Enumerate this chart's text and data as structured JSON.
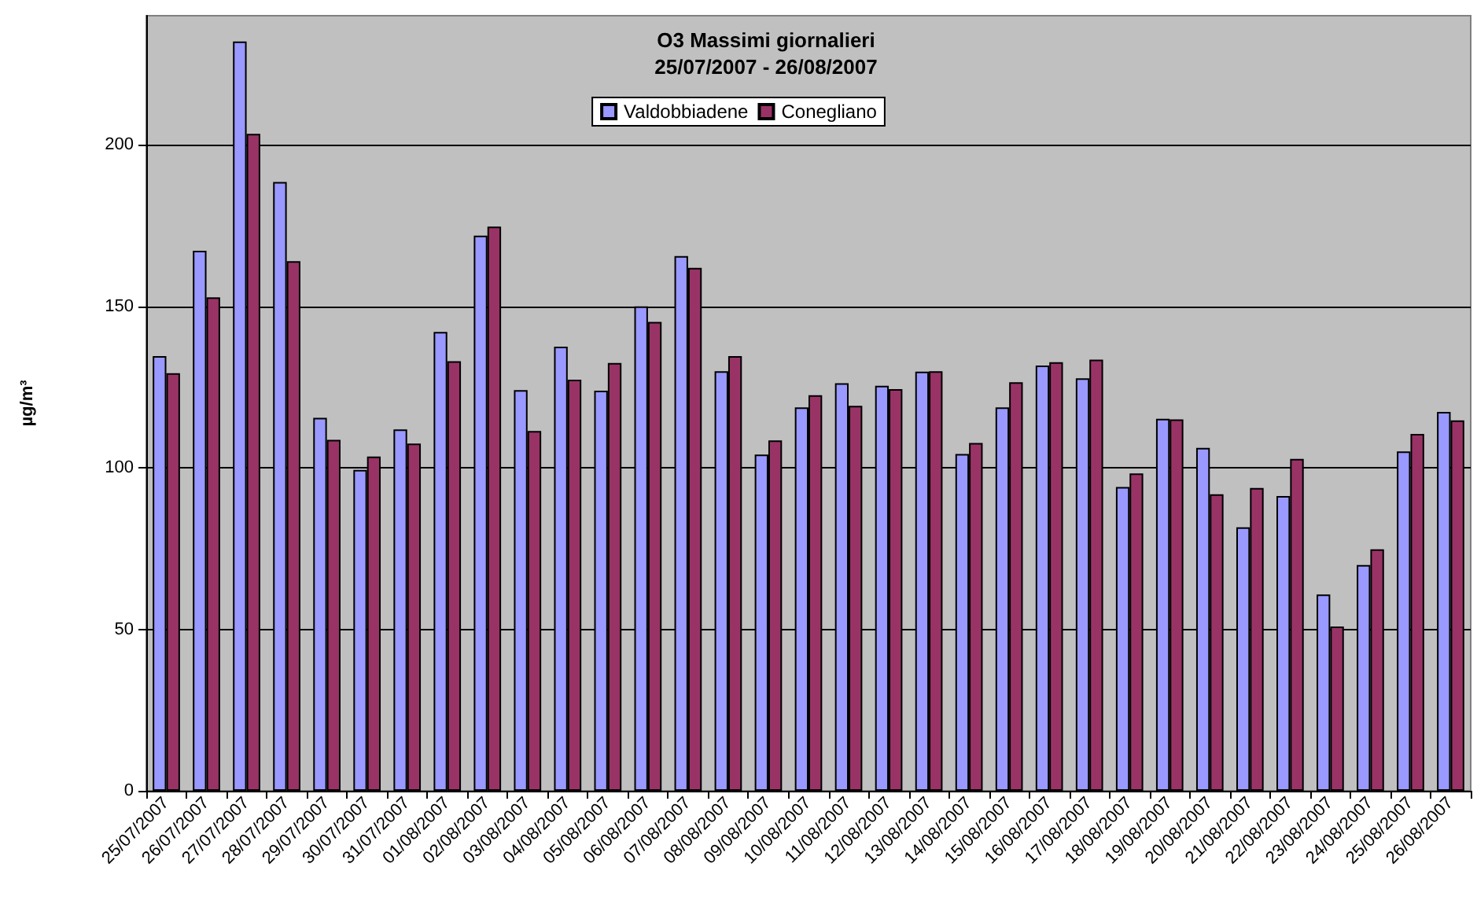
{
  "chart_data": {
    "type": "bar",
    "title": "O3 Massimi giornalieri",
    "subtitle": "25/07/2007 - 26/08/2007",
    "ylabel": "µg/m³",
    "categories": [
      "25/07/2007",
      "26/07/2007",
      "27/07/2007",
      "28/07/2007",
      "29/07/2007",
      "30/07/2007",
      "31/07/2007",
      "01/08/2007",
      "02/08/2007",
      "03/08/2007",
      "04/08/2007",
      "05/08/2007",
      "06/08/2007",
      "07/08/2007",
      "08/08/2007",
      "09/08/2007",
      "10/08/2007",
      "11/08/2007",
      "12/08/2007",
      "13/08/2007",
      "14/08/2007",
      "15/08/2007",
      "16/08/2007",
      "17/08/2007",
      "18/08/2007",
      "19/08/2007",
      "20/08/2007",
      "21/08/2007",
      "22/08/2007",
      "23/08/2007",
      "24/08/2007",
      "25/08/2007",
      "26/08/2007"
    ],
    "series": [
      {
        "name": "Valdobbiadene",
        "color": "#9999ff",
        "values": [
          134.6,
          167.2,
          232,
          188.5,
          115.5,
          99.4,
          111.9,
          142.1,
          171.9,
          124.1,
          137.5,
          123.9,
          150,
          165.6,
          129.9,
          104.1,
          118.7,
          126.2,
          125.4,
          129.8,
          104.3,
          118.7,
          131.7,
          127.7,
          94.1,
          115.2,
          106.2,
          81.6,
          91.3,
          60.8,
          69.9,
          105.1,
          117.3
        ]
      },
      {
        "name": "Conegliano",
        "color": "#993366",
        "values": [
          129.3,
          152.8,
          203.4,
          164,
          108.7,
          103.5,
          107.5,
          133,
          174.7,
          111.4,
          127.3,
          132.5,
          145.2,
          161.9,
          134.6,
          108.5,
          122.5,
          119.2,
          124.4,
          129.9,
          107.7,
          126.5,
          132.7,
          133.5,
          98.3,
          115,
          91.8,
          93.8,
          102.8,
          50.9,
          74.8,
          110.5,
          114.7
        ]
      }
    ],
    "ylim": [
      0,
      240
    ],
    "yticks": [
      0,
      50,
      100,
      150,
      200
    ],
    "grid": "y",
    "legend": "top"
  }
}
